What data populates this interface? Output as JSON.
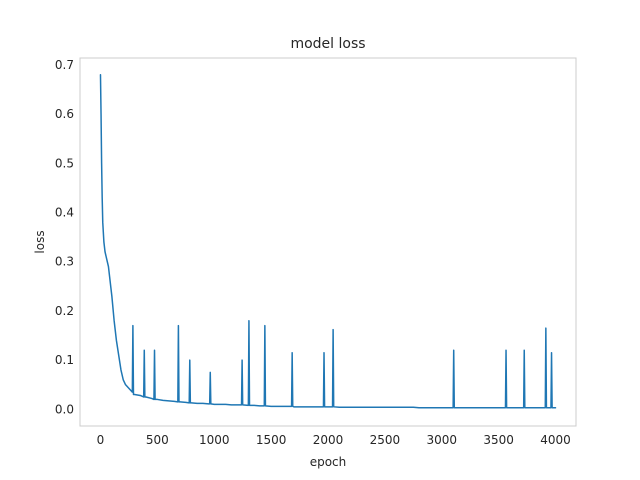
{
  "chart_data": {
    "type": "line",
    "title": "model loss",
    "xlabel": "epoch",
    "ylabel": "loss",
    "xlim": [
      -180,
      4180
    ],
    "ylim": [
      -0.034,
      0.714
    ],
    "x_ticks": [
      0,
      500,
      1000,
      1500,
      2000,
      2500,
      3000,
      3500,
      4000
    ],
    "y_ticks": [
      0.0,
      0.1,
      0.2,
      0.3,
      0.4,
      0.5,
      0.6,
      0.7
    ],
    "x_tick_labels": [
      "0",
      "500",
      "1000",
      "1500",
      "2000",
      "2500",
      "3000",
      "3500",
      "4000"
    ],
    "y_tick_labels": [
      "0.0",
      "0.1",
      "0.2",
      "0.3",
      "0.4",
      "0.5",
      "0.6",
      "0.7"
    ],
    "grid": true,
    "colors": {
      "series": "#1f77b4"
    },
    "series": [
      {
        "x": [
          0,
          5,
          10,
          15,
          20,
          25,
          30,
          40,
          50,
          60,
          70,
          80,
          90,
          100,
          120,
          140,
          160,
          180,
          200,
          220,
          240,
          260,
          280,
          285,
          290,
          300,
          350,
          380,
          385,
          390,
          400,
          450,
          470,
          475,
          480,
          500,
          550,
          600,
          650,
          680,
          685,
          690,
          700,
          750,
          780,
          785,
          790,
          800,
          850,
          900,
          950,
          960,
          965,
          970,
          1000,
          1050,
          1100,
          1150,
          1200,
          1240,
          1245,
          1250,
          1300,
          1305,
          1310,
          1350,
          1400,
          1440,
          1445,
          1450,
          1500,
          1550,
          1600,
          1650,
          1680,
          1685,
          1690,
          1700,
          1750,
          1800,
          1850,
          1900,
          1960,
          1965,
          1970,
          2000,
          2040,
          2045,
          2050,
          2100,
          2150,
          2200,
          2250,
          2300,
          2350,
          2400,
          2450,
          2500,
          2550,
          2600,
          2650,
          2700,
          2750,
          2800,
          2850,
          2900,
          2950,
          3000,
          3050,
          3100,
          3105,
          3110,
          3150,
          3200,
          3250,
          3300,
          3350,
          3400,
          3450,
          3500,
          3560,
          3565,
          3570,
          3600,
          3650,
          3700,
          3720,
          3725,
          3730,
          3750,
          3800,
          3850,
          3900,
          3910,
          3915,
          3920,
          3950,
          3960,
          3965,
          3970,
          3990,
          4000
        ],
        "y": [
          0.68,
          0.6,
          0.5,
          0.43,
          0.38,
          0.36,
          0.34,
          0.32,
          0.31,
          0.3,
          0.29,
          0.27,
          0.25,
          0.23,
          0.18,
          0.14,
          0.11,
          0.08,
          0.06,
          0.05,
          0.045,
          0.04,
          0.035,
          0.17,
          0.03,
          0.03,
          0.028,
          0.025,
          0.12,
          0.025,
          0.025,
          0.022,
          0.02,
          0.12,
          0.02,
          0.02,
          0.018,
          0.017,
          0.016,
          0.015,
          0.17,
          0.015,
          0.015,
          0.014,
          0.013,
          0.1,
          0.013,
          0.013,
          0.012,
          0.012,
          0.011,
          0.011,
          0.075,
          0.011,
          0.01,
          0.01,
          0.01,
          0.009,
          0.009,
          0.009,
          0.1,
          0.009,
          0.008,
          0.18,
          0.008,
          0.008,
          0.007,
          0.007,
          0.17,
          0.007,
          0.006,
          0.006,
          0.006,
          0.006,
          0.006,
          0.115,
          0.006,
          0.005,
          0.005,
          0.005,
          0.005,
          0.005,
          0.005,
          0.115,
          0.005,
          0.005,
          0.005,
          0.162,
          0.005,
          0.004,
          0.004,
          0.004,
          0.004,
          0.004,
          0.004,
          0.004,
          0.004,
          0.004,
          0.004,
          0.004,
          0.004,
          0.004,
          0.004,
          0.003,
          0.003,
          0.003,
          0.003,
          0.003,
          0.003,
          0.003,
          0.12,
          0.003,
          0.003,
          0.003,
          0.003,
          0.003,
          0.003,
          0.003,
          0.003,
          0.003,
          0.003,
          0.12,
          0.003,
          0.003,
          0.003,
          0.003,
          0.003,
          0.12,
          0.003,
          0.003,
          0.003,
          0.003,
          0.003,
          0.003,
          0.165,
          0.003,
          0.003,
          0.003,
          0.115,
          0.003,
          0.003,
          0.003
        ]
      }
    ]
  }
}
